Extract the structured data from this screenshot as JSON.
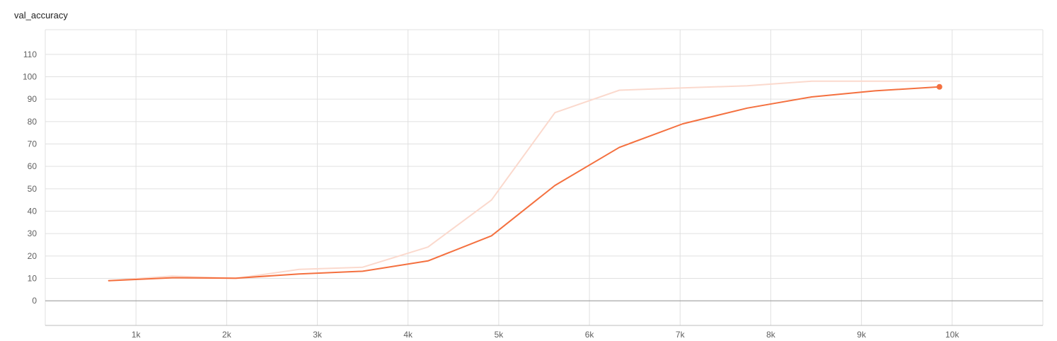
{
  "chart_data": {
    "type": "line",
    "title": "val_accuracy",
    "xlabel": "",
    "ylabel": "",
    "xlim": [
      0,
      11000
    ],
    "ylim": [
      -11,
      121
    ],
    "x_ticks": [
      1000,
      2000,
      3000,
      4000,
      5000,
      6000,
      7000,
      8000,
      9000,
      10000
    ],
    "x_tick_labels": [
      "1k",
      "2k",
      "3k",
      "4k",
      "5k",
      "6k",
      "7k",
      "8k",
      "9k",
      "10k"
    ],
    "y_ticks": [
      0,
      10,
      20,
      30,
      40,
      50,
      60,
      70,
      80,
      90,
      100,
      110
    ],
    "y_tick_labels": [
      "0",
      "10",
      "20",
      "30",
      "40",
      "50",
      "60",
      "70",
      "80",
      "90",
      "100",
      "110"
    ],
    "grid": true,
    "series": [
      {
        "role": "raw",
        "color": "#fbd9cd",
        "x": [
          700,
          1400,
          2100,
          2800,
          3500,
          4220,
          4920,
          5620,
          6330,
          7030,
          7740,
          8450,
          9150,
          9860
        ],
        "y": [
          9,
          11,
          10,
          14,
          15,
          24,
          45,
          84,
          94,
          95,
          96,
          98,
          98,
          98
        ]
      },
      {
        "role": "smoothed",
        "color": "#f4703f",
        "x": [
          700,
          1400,
          2100,
          2800,
          3500,
          4220,
          4920,
          5620,
          6330,
          7030,
          7740,
          8450,
          9150,
          9860
        ],
        "y": [
          9,
          10.3,
          10.1,
          12,
          13.2,
          17.8,
          29,
          51.5,
          68.5,
          79,
          86,
          91,
          93.7,
          95.5
        ]
      }
    ]
  }
}
